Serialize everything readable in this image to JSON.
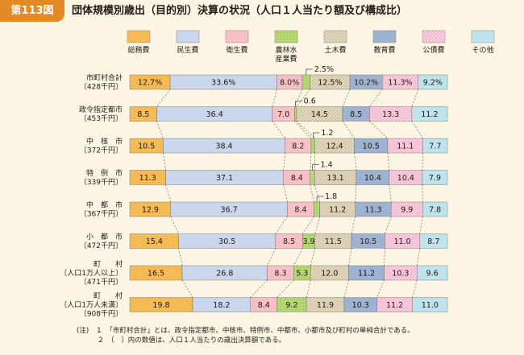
{
  "header": {
    "figure_label": "第113図",
    "title": "団体規模別歳出（目的別）決算の状況（人口１人当たり額及び構成比）"
  },
  "colors": {
    "header_accent": "#e38a24",
    "background": "#fdf5e4",
    "series": [
      "#f4b342",
      "#c9d6ec",
      "#f6b9c0",
      "#b9d977",
      "#e6dcc3",
      "#b4c4dd",
      "#f6b3cc",
      "#bfe3ec"
    ]
  },
  "notes": [
    "(注)　１　「市町村合計」とは、政令指定都市、中核市、特例市、中都市、小都市及び町村の単純合計である。",
    "　　　２　〔　〕内の数値は、人口１人当たりの歳出決算額である。"
  ],
  "chart_data": {
    "type": "bar",
    "orientation": "horizontal",
    "stacked": "100%",
    "grid": false,
    "legend_position": "top",
    "categories": [
      [
        "市町村合計",
        "〔428千円〕"
      ],
      [
        "政令指定都市",
        "〔453千円〕"
      ],
      [
        "中　核　市",
        "〔372千円〕"
      ],
      [
        "特　例　市",
        "〔339千円〕"
      ],
      [
        "中　都　市",
        "〔367千円〕"
      ],
      [
        "小　都　市",
        "〔472千円〕"
      ],
      [
        "町　　村",
        "〔人口1万人以上〕",
        "〔471千円〕"
      ],
      [
        "町　　村",
        "〔人口1万人未満〕",
        "〔908千円〕"
      ]
    ],
    "series": [
      {
        "name": "総務費",
        "pattern": "dots",
        "values": [
          12.7,
          8.5,
          10.5,
          11.3,
          12.9,
          15.4,
          16.5,
          19.8
        ]
      },
      {
        "name": "民生費",
        "pattern": "solid",
        "values": [
          33.6,
          36.4,
          38.4,
          37.1,
          36.7,
          30.5,
          26.8,
          18.2
        ]
      },
      {
        "name": "衛生費",
        "pattern": "dots",
        "values": [
          8.0,
          7.0,
          8.2,
          8.4,
          8.4,
          8.5,
          8.3,
          8.4
        ]
      },
      {
        "name": "農林水産業費",
        "pattern": "grid",
        "values": [
          2.5,
          0.6,
          1.2,
          1.4,
          1.8,
          3.9,
          5.3,
          9.2
        ]
      },
      {
        "name": "土木費",
        "pattern": "diagonal",
        "values": [
          12.5,
          14.5,
          12.4,
          13.1,
          11.2,
          11.5,
          12.0,
          11.9
        ]
      },
      {
        "name": "教育費",
        "pattern": "horizontal",
        "values": [
          10.2,
          8.5,
          10.5,
          10.4,
          11.3,
          10.5,
          11.2,
          10.3
        ]
      },
      {
        "name": "公債費",
        "pattern": "checker",
        "values": [
          11.3,
          13.3,
          11.1,
          10.4,
          9.9,
          11.0,
          10.3,
          11.2
        ]
      },
      {
        "name": "その他",
        "pattern": "solid",
        "values": [
          9.2,
          11.2,
          7.7,
          7.9,
          7.8,
          8.7,
          9.6,
          11.0
        ]
      }
    ],
    "data_labels": [
      [
        "12.7%",
        "33.6%",
        "8.0%",
        "2.5%",
        "12.5%",
        "10.2%",
        "11.3%",
        "9.2%"
      ],
      [
        "8.5",
        "36.4",
        "7.0",
        "0.6",
        "14.5",
        "8.5",
        "13.3",
        "11.2"
      ],
      [
        "10.5",
        "38.4",
        "8.2",
        "1.2",
        "12.4",
        "10.5",
        "11.1",
        "7.7"
      ],
      [
        "11.3",
        "37.1",
        "8.4",
        "1.4",
        "13.1",
        "10.4",
        "10.4",
        "7.9"
      ],
      [
        "12.9",
        "36.7",
        "8.4",
        "1.8",
        "11.2",
        "11.3",
        "9.9",
        "7.8"
      ],
      [
        "15.4",
        "30.5",
        "8.5",
        "3.9",
        "11.5",
        "10.5",
        "11.0",
        "8.7"
      ],
      [
        "16.5",
        "26.8",
        "8.3",
        "5.3",
        "12.0",
        "11.2",
        "10.3",
        "9.6"
      ],
      [
        "19.8",
        "18.2",
        "8.4",
        "9.2",
        "11.9",
        "10.3",
        "11.2",
        "11.0"
      ]
    ],
    "xlim": [
      0,
      100
    ]
  }
}
